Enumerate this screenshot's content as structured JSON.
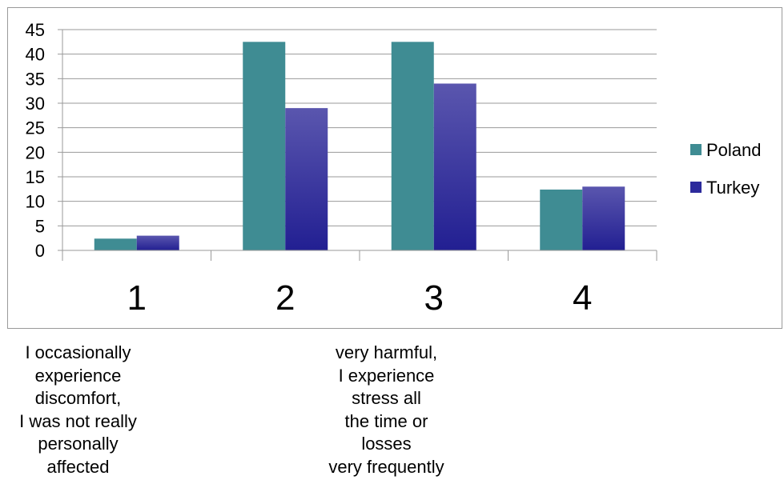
{
  "chart_data": {
    "type": "bar",
    "categories": [
      "1",
      "2",
      "3",
      "4"
    ],
    "series": [
      {
        "name": "Poland",
        "values": [
          2.4,
          42.5,
          42.5,
          12.4
        ],
        "color": "#3f8c93"
      },
      {
        "name": "Turkey",
        "values": [
          3.0,
          29.0,
          34.0,
          13.0
        ],
        "color": "#2c2a9c"
      }
    ],
    "y_ticks": [
      "0",
      "5",
      "10",
      "15",
      "20",
      "25",
      "30",
      "35",
      "40",
      "45"
    ],
    "ylim": [
      0,
      45
    ],
    "grid": true,
    "legend_position": "right"
  },
  "annotations": {
    "left": "I occasionally\nexperience\ndiscomfort,\nI was not really\npersonally\naffected",
    "middle": "very harmful,\nI experience\nstress all\nthe time or\nlosses\nvery frequently"
  }
}
